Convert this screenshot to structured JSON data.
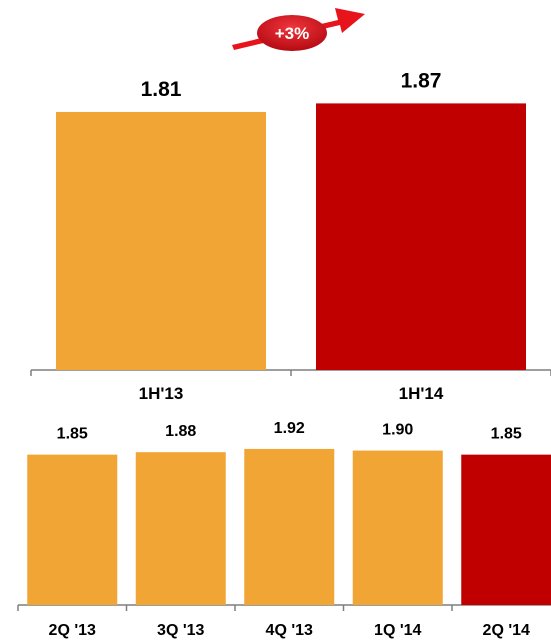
{
  "chart_data": [
    {
      "type": "bar",
      "categories": [
        "1H'13",
        "1H'14"
      ],
      "values": [
        1.81,
        1.87
      ],
      "value_labels": [
        "1.81",
        "1.87"
      ],
      "ylim": [
        0,
        1.95
      ],
      "title": "",
      "xlabel": "",
      "ylabel": "",
      "grid": false,
      "colors": [
        "#F0A535",
        "#C00000"
      ],
      "annotation": {
        "label": "+3%",
        "arrow_color": "#E8141C",
        "badge_color": "#D2111A"
      }
    },
    {
      "type": "bar",
      "categories": [
        "2Q '13",
        "3Q '13",
        "4Q '13",
        "1Q '14",
        "2Q '14"
      ],
      "values": [
        1.85,
        1.88,
        1.92,
        1.9,
        1.85
      ],
      "value_labels": [
        "1.85",
        "1.88",
        "1.92",
        "1.90",
        "1.85"
      ],
      "ylim": [
        0,
        1.95
      ],
      "title": "",
      "xlabel": "",
      "ylabel": "",
      "grid": false,
      "colors": [
        "#F0A535",
        "#F0A535",
        "#F0A535",
        "#F0A535",
        "#C00000"
      ]
    }
  ]
}
